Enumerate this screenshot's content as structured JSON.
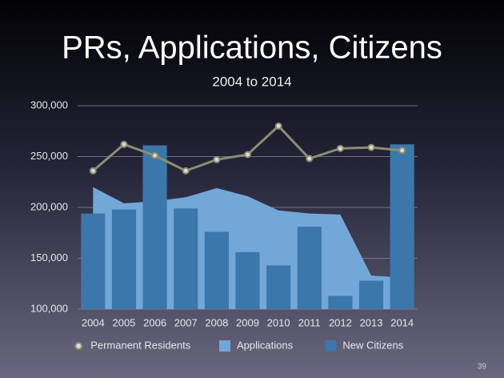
{
  "chart_data": {
    "type": "combo",
    "title": "PRs, Applications, Citizens",
    "subtitle": "2004 to 2014",
    "categories": [
      "2004",
      "2005",
      "2006",
      "2007",
      "2008",
      "2009",
      "2010",
      "2011",
      "2012",
      "2013",
      "2014"
    ],
    "series": [
      {
        "name": "Permanent Residents",
        "type": "line",
        "color": "#8c8c74",
        "values": [
          236000,
          262000,
          251000,
          236000,
          247000,
          252000,
          280000,
          248000,
          258000,
          259000,
          256000
        ]
      },
      {
        "name": "Applications",
        "type": "area",
        "color": "#72a7d8",
        "values": [
          220000,
          204000,
          206000,
          210000,
          219000,
          211000,
          197000,
          194000,
          193000,
          133000,
          131000
        ]
      },
      {
        "name": "New Citizens",
        "type": "bar",
        "color": "#3c77ab",
        "values": [
          194000,
          198000,
          261000,
          199000,
          176000,
          156000,
          143000,
          181000,
          113000,
          128000,
          262000
        ]
      }
    ],
    "ylim": [
      100000,
      300000
    ],
    "yticks": [
      {
        "value": 100000,
        "label": "100,000"
      },
      {
        "value": 150000,
        "label": "150,000"
      },
      {
        "value": 200000,
        "label": "200,000"
      },
      {
        "value": 250000,
        "label": "250,000"
      },
      {
        "value": 300000,
        "label": "300,000"
      }
    ],
    "grid": true,
    "legend": "bottom"
  },
  "slide_number": "39"
}
